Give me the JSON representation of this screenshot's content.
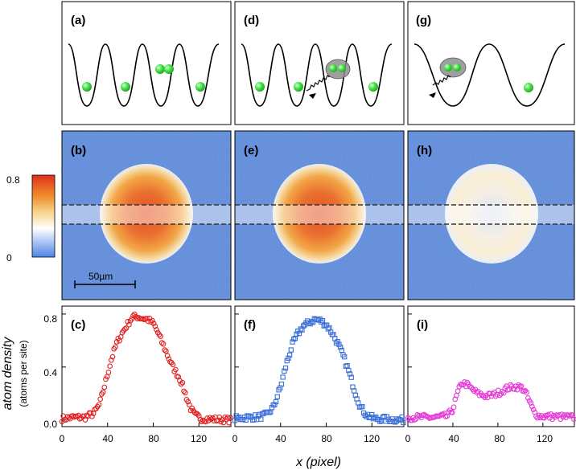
{
  "figure": {
    "lattice_labels": [
      "(a)",
      "(d)",
      "(g)"
    ],
    "image_labels": [
      "(b)",
      "(e)",
      "(h)"
    ],
    "plot_labels": [
      "(c)",
      "(f)",
      "(i)"
    ],
    "scale_bar_label": "50µm",
    "colorbar": {
      "max_label": "0.8",
      "min_label": "0"
    },
    "colors": {
      "red": "#e02020",
      "blue": "#3a6fd8",
      "magenta": "#e43ad6",
      "background_blue": "#4d84e6",
      "atom_green": "#33dd33"
    }
  },
  "chart_data": [
    {
      "type": "scatter",
      "panel": "(c)",
      "xlabel": "x (pixel)",
      "ylabel": "atom density",
      "ylabel_sub": "(atoms per site)",
      "xlim": [
        0,
        148
      ],
      "ylim": [
        -0.05,
        0.86
      ],
      "xticks": [
        "0",
        "40",
        "80",
        "120"
      ],
      "yticks": [
        "0.0",
        "0.4",
        "0.8"
      ],
      "marker": "circle",
      "color": "#e02020",
      "profile": [
        [
          0,
          0.01
        ],
        [
          10,
          0.02
        ],
        [
          20,
          0.02
        ],
        [
          28,
          0.05
        ],
        [
          33,
          0.12
        ],
        [
          38,
          0.28
        ],
        [
          43,
          0.45
        ],
        [
          48,
          0.58
        ],
        [
          53,
          0.66
        ],
        [
          58,
          0.73
        ],
        [
          62,
          0.78
        ],
        [
          66,
          0.78
        ],
        [
          70,
          0.77
        ],
        [
          75,
          0.76
        ],
        [
          80,
          0.73
        ],
        [
          84,
          0.66
        ],
        [
          88,
          0.58
        ],
        [
          92,
          0.5
        ],
        [
          96,
          0.42
        ],
        [
          100,
          0.36
        ],
        [
          104,
          0.3
        ],
        [
          108,
          0.2
        ],
        [
          112,
          0.1
        ],
        [
          116,
          0.04
        ],
        [
          122,
          0.01
        ],
        [
          148,
          0.0
        ]
      ]
    },
    {
      "type": "scatter",
      "panel": "(f)",
      "xlabel": "x (pixel)",
      "xlim": [
        0,
        148
      ],
      "ylim": [
        -0.05,
        0.86
      ],
      "xticks": [
        "0",
        "40",
        "80",
        "120"
      ],
      "marker": "square",
      "color": "#3a6fd8",
      "profile": [
        [
          0,
          0.01
        ],
        [
          10,
          0.02
        ],
        [
          20,
          0.02
        ],
        [
          28,
          0.04
        ],
        [
          34,
          0.1
        ],
        [
          40,
          0.25
        ],
        [
          45,
          0.42
        ],
        [
          50,
          0.56
        ],
        [
          55,
          0.65
        ],
        [
          60,
          0.71
        ],
        [
          66,
          0.74
        ],
        [
          70,
          0.76
        ],
        [
          75,
          0.75
        ],
        [
          80,
          0.72
        ],
        [
          85,
          0.66
        ],
        [
          90,
          0.58
        ],
        [
          95,
          0.48
        ],
        [
          100,
          0.36
        ],
        [
          105,
          0.22
        ],
        [
          110,
          0.1
        ],
        [
          115,
          0.04
        ],
        [
          122,
          0.01
        ],
        [
          148,
          0.0
        ]
      ]
    },
    {
      "type": "scatter",
      "panel": "(i)",
      "xlabel": "x (pixel)",
      "xlim": [
        0,
        148
      ],
      "ylim": [
        -0.05,
        0.86
      ],
      "xticks": [
        "0",
        "40",
        "80",
        "120"
      ],
      "marker": "circle",
      "color": "#e43ad6",
      "profile": [
        [
          0,
          0.02
        ],
        [
          25,
          0.02
        ],
        [
          35,
          0.03
        ],
        [
          40,
          0.08
        ],
        [
          44,
          0.2
        ],
        [
          48,
          0.28
        ],
        [
          52,
          0.27
        ],
        [
          56,
          0.24
        ],
        [
          62,
          0.2
        ],
        [
          70,
          0.18
        ],
        [
          76,
          0.19
        ],
        [
          82,
          0.21
        ],
        [
          88,
          0.24
        ],
        [
          94,
          0.25
        ],
        [
          100,
          0.25
        ],
        [
          104,
          0.22
        ],
        [
          108,
          0.14
        ],
        [
          112,
          0.06
        ],
        [
          116,
          0.03
        ],
        [
          148,
          0.02
        ]
      ]
    }
  ]
}
